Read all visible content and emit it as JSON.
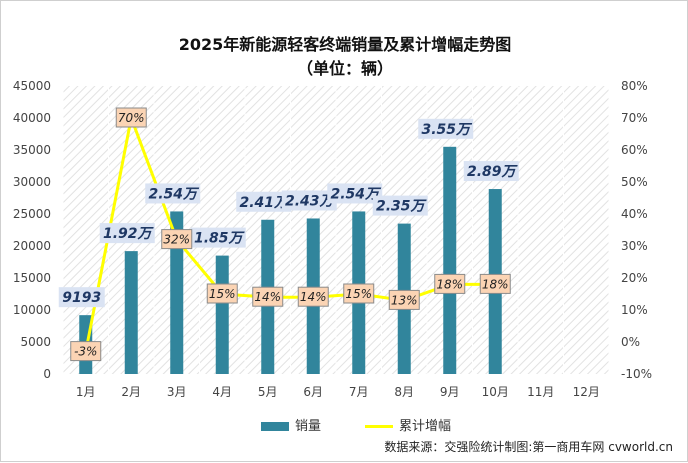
{
  "header": {
    "title": "2025年新能源轻客终端销量及累计增幅走势图",
    "subtitle": "（单位：辆）"
  },
  "source": "数据来源：交强险统计制图:第一商用车网 cvworld.cn",
  "colors": {
    "bar": "#31859c",
    "line": "#ffff00",
    "bar_label_bg": "#dae3f3",
    "bar_label_text": "#1f3864",
    "line_label_bg": "#fbd4b4",
    "line_label_border": "#8a8a8a"
  },
  "chart_data": {
    "type": "bar",
    "categories": [
      "1月",
      "2月",
      "3月",
      "4月",
      "5月",
      "6月",
      "7月",
      "8月",
      "9月",
      "10月",
      "11月",
      "12月"
    ],
    "series": [
      {
        "name": "销量",
        "type": "bar",
        "axis": "left",
        "values": [
          9193,
          19200,
          25400,
          18500,
          24100,
          24300,
          25400,
          23500,
          35500,
          28900,
          null,
          null
        ],
        "labels": [
          "9193",
          "1.92万",
          "2.54万",
          "1.85万",
          "2.41万",
          "2.43万",
          "2.54万",
          "2.35万",
          "3.55万",
          "2.89万",
          "",
          ""
        ]
      },
      {
        "name": "累计增幅",
        "type": "line",
        "axis": "right",
        "values": [
          -3,
          70,
          32,
          15,
          14,
          14,
          15,
          13,
          18,
          18,
          null,
          null
        ],
        "labels": [
          "-3%",
          "70%",
          "32%",
          "15%",
          "14%",
          "14%",
          "15%",
          "13%",
          "18%",
          "18%",
          "",
          ""
        ]
      }
    ],
    "y_left": {
      "min": 0,
      "max": 45000,
      "step": 5000
    },
    "y_right": {
      "min": -10,
      "max": 80,
      "step": 10,
      "suffix": "%"
    },
    "legend": {
      "position": "bottom"
    },
    "grid": false
  }
}
